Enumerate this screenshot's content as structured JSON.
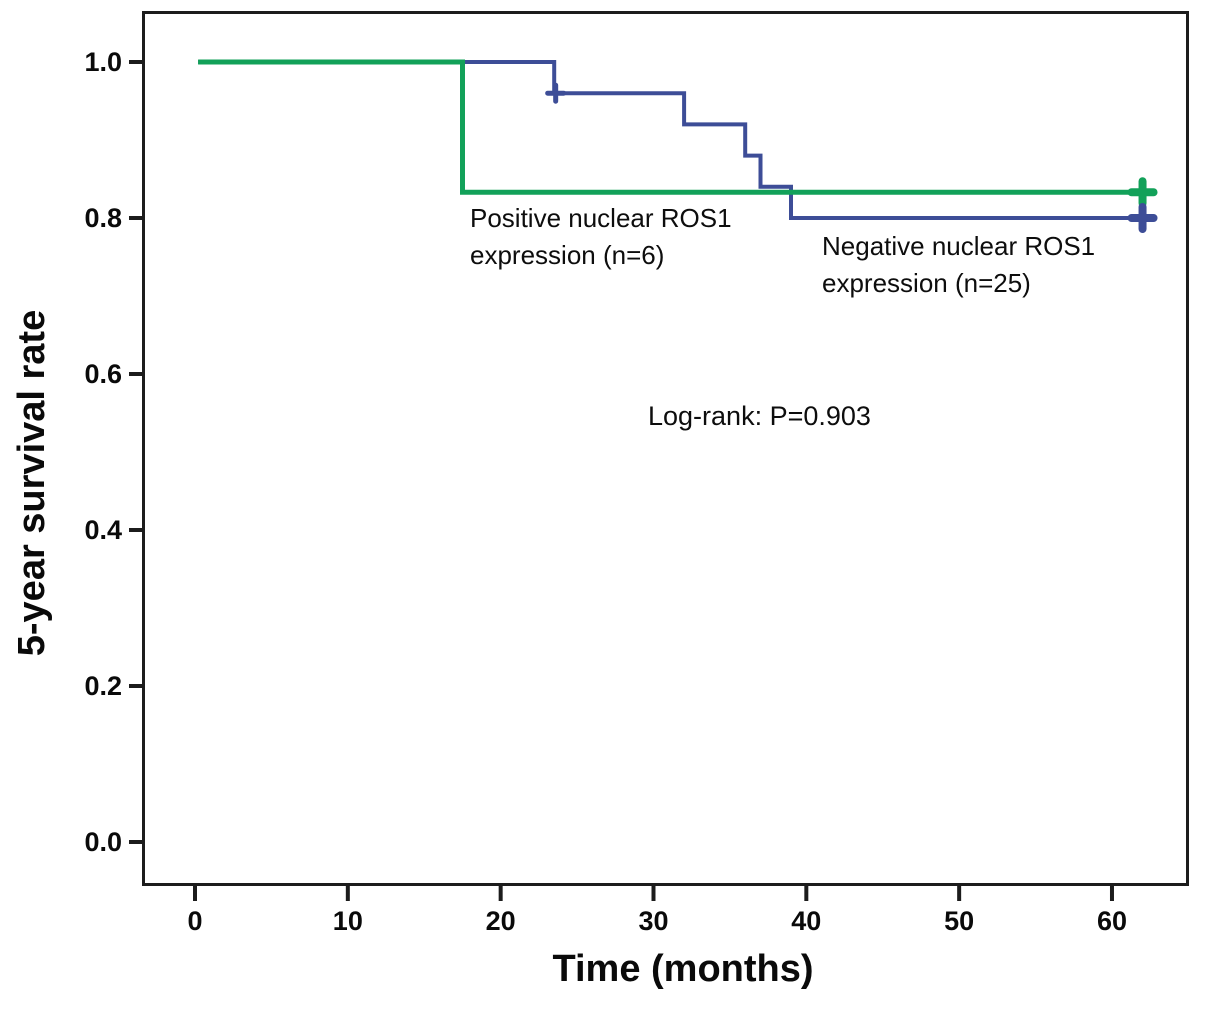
{
  "chart_data": {
    "type": "line",
    "subtype": "kaplan-meier-step",
    "title": "",
    "xlabel": "Time (months)",
    "ylabel": "5-year survival rate",
    "xlim": [
      0,
      65
    ],
    "ylim": [
      0,
      1.05
    ],
    "x_ticks": [
      0,
      10,
      20,
      30,
      40,
      50,
      60
    ],
    "y_ticks": [
      0.0,
      0.2,
      0.4,
      0.6,
      0.8,
      1.0
    ],
    "grid": false,
    "legend_position": "inline-annotations",
    "annotation": "Log-rank: P=0.903",
    "series": [
      {
        "name": "Positive nuclear ROS1 expression (n=6)",
        "n": 6,
        "color": "#12a159",
        "points": [
          [
            0.2,
            1.0
          ],
          [
            17.5,
            1.0
          ],
          [
            17.5,
            0.833
          ],
          [
            62,
            0.833
          ]
        ],
        "censor_marks": [
          [
            62,
            0.833
          ]
        ]
      },
      {
        "name": "Negative nuclear ROS1 expression (n=25)",
        "n": 25,
        "color": "#3d4d97",
        "points": [
          [
            0.2,
            1.0
          ],
          [
            23.5,
            1.0
          ],
          [
            23.5,
            0.96
          ],
          [
            32,
            0.96
          ],
          [
            32,
            0.92
          ],
          [
            36,
            0.92
          ],
          [
            36,
            0.88
          ],
          [
            37,
            0.88
          ],
          [
            37,
            0.84
          ],
          [
            39,
            0.84
          ],
          [
            39,
            0.8
          ],
          [
            62,
            0.8
          ]
        ],
        "censor_marks": [
          [
            23.6,
            0.96
          ],
          [
            62,
            0.8
          ]
        ]
      }
    ]
  }
}
